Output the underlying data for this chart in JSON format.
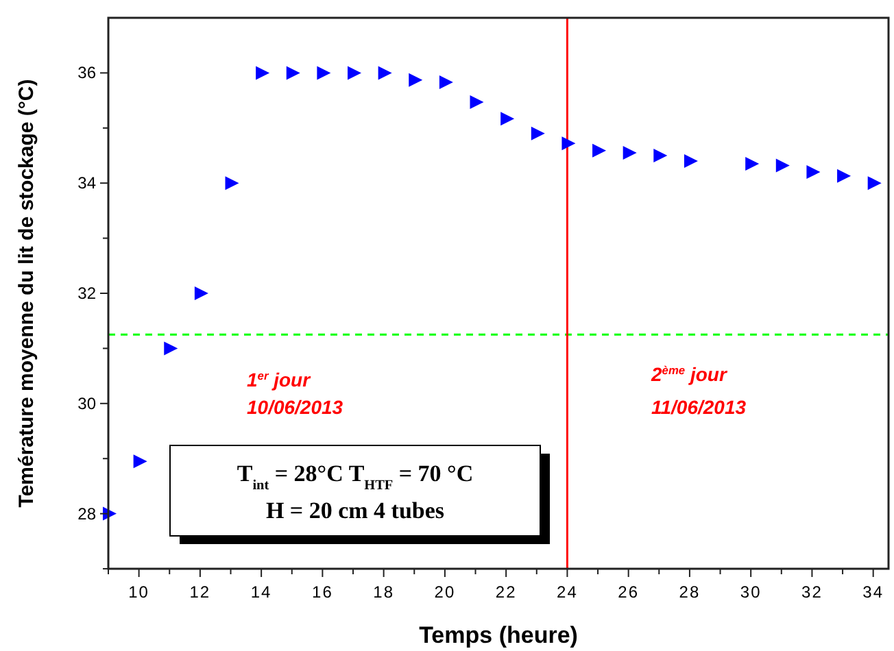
{
  "chart_data": {
    "type": "scatter",
    "xlabel": "Temps (heure)",
    "ylabel": "Temérature moyenne du lit de stockage (°C)",
    "x": [
      9,
      10,
      11,
      12,
      13,
      14,
      15,
      16,
      17,
      18,
      19,
      20,
      21,
      22,
      23,
      24,
      25,
      26,
      27,
      28,
      30,
      31,
      32,
      33,
      34
    ],
    "series": [
      {
        "color": "#0000ff",
        "values": [
          28.0,
          28.95,
          31.0,
          32.0,
          34.0,
          36.0,
          36.0,
          36.0,
          36.0,
          36.0,
          35.87,
          35.83,
          35.47,
          35.17,
          34.9,
          34.72,
          34.59,
          34.55,
          34.5,
          34.4,
          34.35,
          34.32,
          34.2,
          34.13,
          34.0
        ]
      }
    ],
    "marker": "triangle",
    "xlim": [
      9,
      34.5
    ],
    "ylim": [
      27,
      37
    ],
    "xticks": [
      {
        "value": 9,
        "label": null
      },
      10,
      {
        "value": 11,
        "label": null
      },
      12,
      {
        "value": 13,
        "label": null
      },
      14,
      {
        "value": 15,
        "label": null
      },
      16,
      {
        "value": 17,
        "label": null
      },
      18,
      {
        "value": 19,
        "label": null
      },
      20,
      {
        "value": 21,
        "label": null
      },
      22,
      {
        "value": 23,
        "label": null
      },
      24,
      {
        "value": 25,
        "label": null
      },
      26,
      {
        "value": 27,
        "label": null
      },
      28,
      {
        "value": 29,
        "label": null
      },
      30,
      {
        "value": 31,
        "label": null
      },
      32,
      {
        "value": 33,
        "label": null
      },
      34
    ],
    "yticks": [
      {
        "value": 27,
        "label": null
      },
      28,
      {
        "value": 29,
        "label": null
      },
      30,
      {
        "value": 31,
        "label": null
      },
      32,
      {
        "value": 33,
        "label": null
      },
      34,
      {
        "value": 35,
        "label": null
      },
      36
    ],
    "ref_lines": [
      {
        "axis": "y",
        "value": 31.25,
        "color": "#00ff00",
        "line_style": "dashed"
      },
      {
        "axis": "x",
        "value": 24,
        "color": "#ff0000",
        "line_style": "solid"
      }
    ],
    "annotations": [
      "1$^{er}$ jour",
      "10/06/2013",
      "2$^{ème}$ jour",
      "11/06/2013",
      "T$_{int}$ = 28°C  T$_{HTF}$ = 70 °C",
      "H = 20 cm  4 tubes"
    ],
    "tick_labels": true
  }
}
